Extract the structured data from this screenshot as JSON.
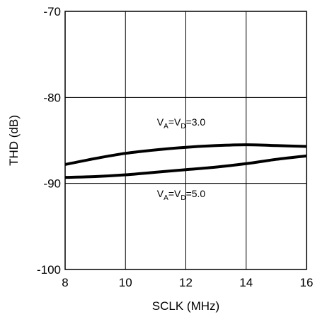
{
  "chart_data": {
    "type": "line",
    "xlabel": "SCLK (MHz)",
    "ylabel": "THD (dB)",
    "xlim": [
      8,
      16
    ],
    "ylim": [
      -100,
      -70
    ],
    "xticks": [
      8,
      10,
      12,
      14,
      16
    ],
    "yticks": [
      -70,
      -80,
      -90,
      -100
    ],
    "xtick_labels": [
      "8",
      "10",
      "12",
      "14",
      "16"
    ],
    "ytick_labels": [
      "-70",
      "-80",
      "-90",
      "-100"
    ],
    "grid": true,
    "series": [
      {
        "name": "V_A=V_D=3.0",
        "x": [
          8,
          9,
          10,
          11,
          12,
          13,
          14,
          15,
          16
        ],
        "y": [
          -87.8,
          -87.1,
          -86.5,
          -86.1,
          -85.8,
          -85.6,
          -85.5,
          -85.6,
          -85.7
        ]
      },
      {
        "name": "V_A=V_D=5.0",
        "x": [
          8,
          9,
          10,
          11,
          12,
          13,
          14,
          15,
          16
        ],
        "y": [
          -89.3,
          -89.2,
          -89.0,
          -88.7,
          -88.4,
          -88.1,
          -87.7,
          -87.2,
          -86.8
        ]
      }
    ],
    "annotations": [
      {
        "series": 0,
        "parts": [
          "V",
          "A",
          "=V",
          "D",
          "=3.0"
        ]
      },
      {
        "series": 1,
        "parts": [
          "V",
          "A",
          "=V",
          "D",
          "=5.0"
        ]
      }
    ],
    "colors": {
      "line": "#000000",
      "grid": "#000000",
      "background": "#ffffff"
    }
  }
}
